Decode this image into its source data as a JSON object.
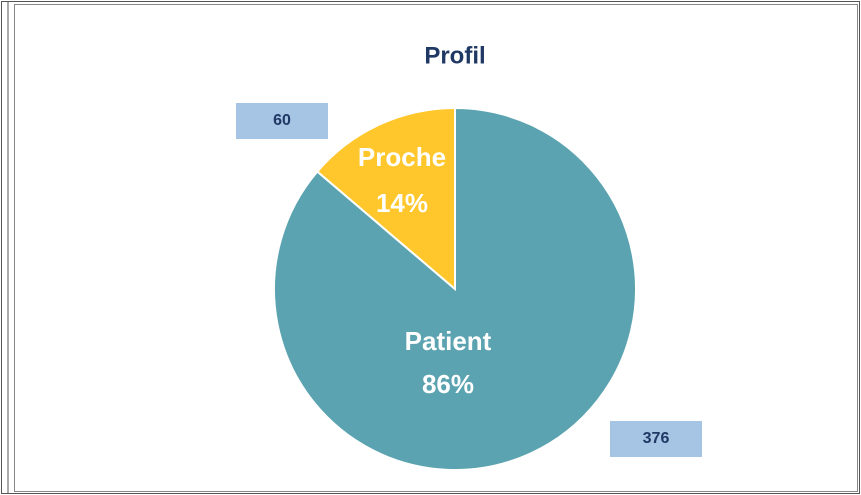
{
  "chart_data": {
    "type": "pie",
    "title": "Profil",
    "categories": [
      "Patient",
      "Proche"
    ],
    "values": [
      376,
      60
    ],
    "percent_labels": [
      "86%",
      "14%"
    ],
    "colors": [
      "#5ba3b0",
      "#ffc72c"
    ]
  }
}
